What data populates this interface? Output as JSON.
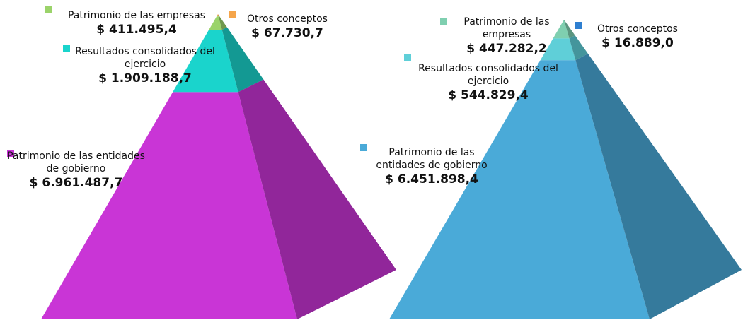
{
  "chart_data": [
    {
      "type": "pyramid",
      "categories": [
        "Otros conceptos",
        "Patrimonio de las empresas",
        "Resultados consolidados del ejercicio",
        "Patrimonio de las entidades de gobierno"
      ],
      "values": [
        67730.7,
        411495.4,
        1909188.7,
        6961487.7
      ],
      "value_labels": [
        "$ 67.730,7",
        "$ 411.495,4",
        "$ 1.909.188,7",
        "$ 6.961.487,7"
      ],
      "colors": [
        "#f5a54a",
        "#9bd36a",
        "#1ad4cc",
        "#c935d6"
      ]
    },
    {
      "type": "pyramid",
      "categories": [
        "Otros conceptos",
        "Patrimonio de las empresas",
        "Resultados consolidados del ejercicio",
        "Patrimonio de las entidades de gobierno"
      ],
      "values": [
        16889.0,
        447282.2,
        544829.4,
        6451898.4
      ],
      "value_labels": [
        "$ 16.889,0",
        "$ 447.282,2",
        "$ 544.829,4",
        "$ 6.451.898,4"
      ],
      "colors": [
        "#2f7fd0",
        "#7fcfb0",
        "#5fcfd8",
        "#4aaad8"
      ]
    }
  ]
}
